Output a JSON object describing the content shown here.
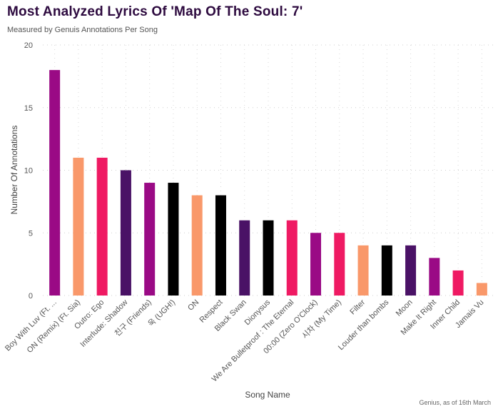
{
  "chart_data": {
    "type": "bar",
    "title": "Most Analyzed Lyrics Of 'Map Of The Soul: 7'",
    "subtitle": "Measured by Genuis Annotations Per Song",
    "xlabel": "Song Name",
    "ylabel": "Number Of Annotations",
    "source": "Genius, as of 16th March",
    "ylim": [
      0,
      20
    ],
    "yticks": [
      0,
      5,
      10,
      15,
      20
    ],
    "grid": true,
    "categories": [
      "Boy With Luv (Ft. ...",
      "ON (Remix) (Ft. Sia)",
      "Outro: Ego",
      "Interlude: Shadow",
      "친구 (Friends)",
      "욱 (UGH!)",
      "ON",
      "Respect",
      "Black Swan",
      "Dionysus",
      "We Are Bulletproof : The Eternal",
      "00:00 (Zero O'Clock)",
      "시차 (My Time)",
      "Filter",
      "Louder than bombs",
      "Moon",
      "Make It Right",
      "Inner Child",
      "Jamais Vu"
    ],
    "values": [
      18,
      11,
      11,
      10,
      9,
      9,
      8,
      8,
      6,
      6,
      6,
      5,
      5,
      4,
      4,
      4,
      3,
      2,
      1
    ],
    "colors": [
      "#9a0a85",
      "#f9986a",
      "#ef1a63",
      "#4a1266",
      "#9a0a85",
      "#000000",
      "#f9986a",
      "#000000",
      "#4a1266",
      "#000000",
      "#ef1a63",
      "#9a0a85",
      "#ef1a63",
      "#f9986a",
      "#000000",
      "#4a1266",
      "#9a0a85",
      "#ef1a63",
      "#f9986a"
    ]
  }
}
